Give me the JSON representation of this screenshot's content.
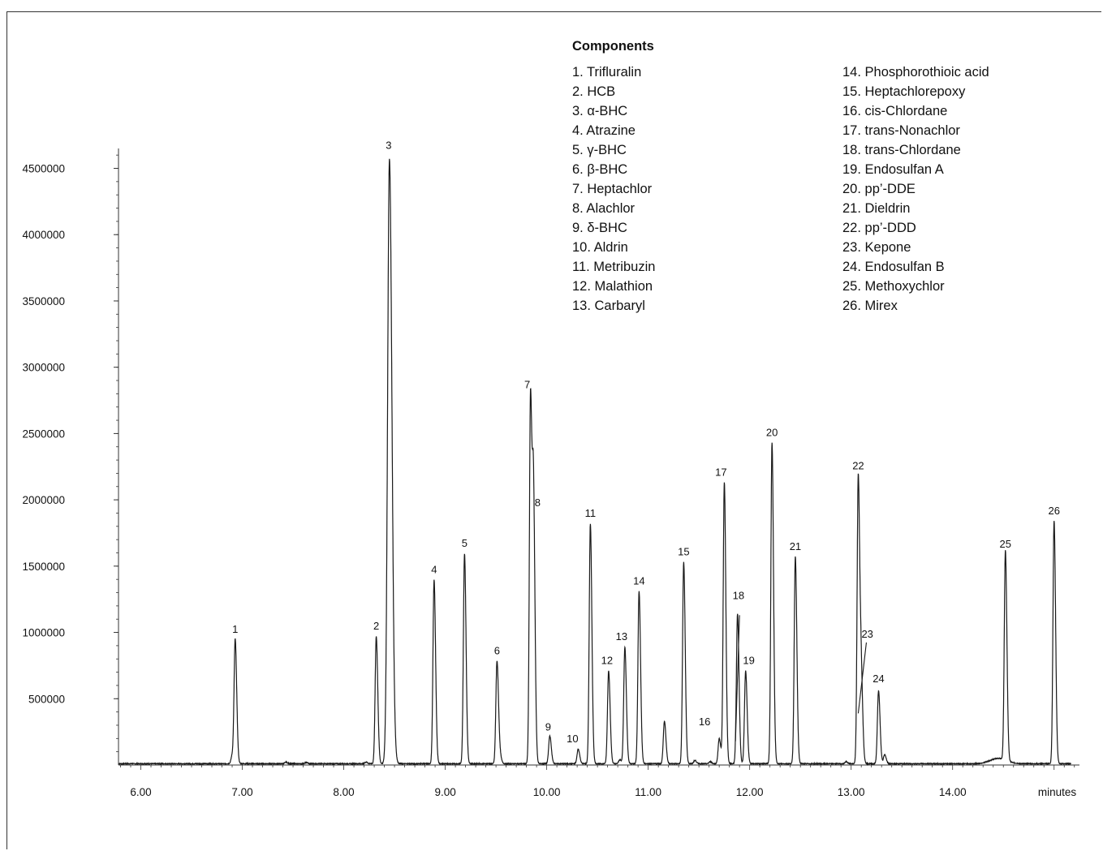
{
  "chart_data": {
    "type": "line",
    "title": "",
    "xlabel": "minutes",
    "ylabel": "",
    "xlim": [
      5.78,
      15.25
    ],
    "ylim": [
      0,
      4650000
    ],
    "x_ticks": [
      "6.00",
      "7.00",
      "8.00",
      "9.00",
      "10.00",
      "11.00",
      "12.00",
      "13.00",
      "14.00"
    ],
    "y_ticks": [
      "500000",
      "1000000",
      "1500000",
      "2000000",
      "2500000",
      "3000000",
      "3500000",
      "4000000",
      "4500000"
    ],
    "grid": false,
    "baseline": 10000,
    "peaks": [
      {
        "label": "1",
        "rt": 6.93,
        "height": 935000
      },
      {
        "label": "2",
        "rt": 8.32,
        "height": 960000
      },
      {
        "label": "3",
        "rt": 8.45,
        "height": 4560000
      },
      {
        "label": "4",
        "rt": 8.89,
        "height": 1385000
      },
      {
        "label": "5",
        "rt": 9.19,
        "height": 1585000
      },
      {
        "label": "6",
        "rt": 9.51,
        "height": 775000
      },
      {
        "label": "7",
        "rt": 9.84,
        "height": 2780000
      },
      {
        "label": "8",
        "rt": 9.87,
        "height": 1890000
      },
      {
        "label": "9",
        "rt": 10.03,
        "height": 210000
      },
      {
        "label": "10",
        "rt": 10.31,
        "height": 110000
      },
      {
        "label": "11",
        "rt": 10.43,
        "height": 1810000
      },
      {
        "label": "12",
        "rt": 10.61,
        "height": 700000
      },
      {
        "label": "13",
        "rt": 10.77,
        "height": 880000
      },
      {
        "label": "14",
        "rt": 10.91,
        "height": 1300000
      },
      {
        "label": "15",
        "rt": 11.35,
        "height": 1520000
      },
      {
        "label": "16",
        "rt": 11.7,
        "height": 190000
      },
      {
        "label": "17",
        "rt": 11.75,
        "height": 2120000
      },
      {
        "label": "18",
        "rt": 11.88,
        "height": 1130000
      },
      {
        "label": "19",
        "rt": 11.96,
        "height": 700000
      },
      {
        "label": "20",
        "rt": 12.22,
        "height": 2420000
      },
      {
        "label": "21",
        "rt": 12.45,
        "height": 1560000
      },
      {
        "label": "22",
        "rt": 13.07,
        "height": 2170000
      },
      {
        "label": "23",
        "rt": 13.1,
        "height": 610000
      },
      {
        "label": "24",
        "rt": 13.27,
        "height": 550000
      },
      {
        "label": "25",
        "rt": 14.52,
        "height": 1580000
      },
      {
        "label": "26",
        "rt": 15.0,
        "height": 1830000
      }
    ],
    "minor_peaks": [
      {
        "rt": 6.9,
        "height": 60000
      },
      {
        "rt": 7.43,
        "height": 12000
      },
      {
        "rt": 7.63,
        "height": 10000
      },
      {
        "rt": 8.22,
        "height": 12000
      },
      {
        "rt": 9.54,
        "height": 50000
      },
      {
        "rt": 10.72,
        "height": 30000
      },
      {
        "rt": 11.16,
        "height": 320000
      },
      {
        "rt": 11.46,
        "height": 25000
      },
      {
        "rt": 11.61,
        "height": 15000
      },
      {
        "rt": 13.33,
        "height": 70000
      },
      {
        "rt": 12.95,
        "height": 15000
      }
    ]
  },
  "legend": {
    "title": "Components",
    "items": [
      "1.  Trifluralin",
      "2.  HCB",
      "3.  α-BHC",
      "4.  Atrazine",
      "5.  γ-BHC",
      "6.  β-BHC",
      "7.  Heptachlor",
      "8.  Alachlor",
      "9.  δ-BHC",
      "10. Aldrin",
      "11. Metribuzin",
      "12. Malathion",
      "13. Carbaryl",
      "14. Phosphorothioic acid",
      "15. Heptachlorepoxy",
      "16. cis-Chlordane",
      "17. trans-Nonachlor",
      "18. trans-Chlordane",
      "19. Endosulfan A",
      "20. pp’-DDE",
      "21. Dieldrin",
      "22. pp’-DDD",
      "23. Kepone",
      "24. Endosulfan B",
      "25. Methoxychlor",
      "26. Mirex"
    ]
  },
  "colors": {
    "trace": "#1a1a1a",
    "axis": "#333333",
    "text": "#111111"
  }
}
